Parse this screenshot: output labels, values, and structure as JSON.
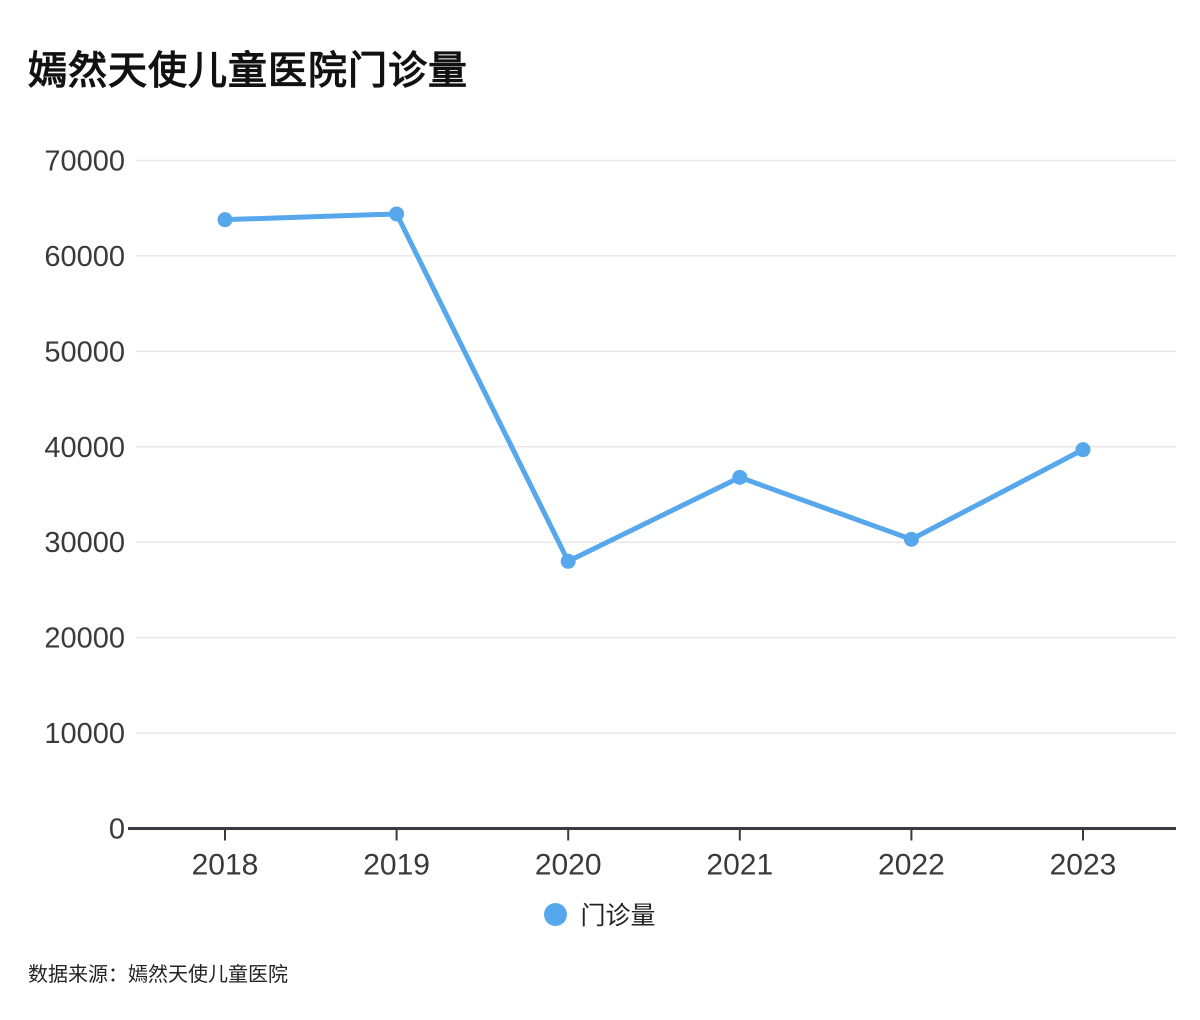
{
  "title": "嫣然天使儿童医院门诊量",
  "legend": {
    "label": "门诊量"
  },
  "source": "数据来源：嫣然天使儿童医院",
  "colors": {
    "series_blue": "#57a7ec",
    "gridline": "#e8e8e8",
    "axis": "#3a3a40",
    "tick_label": "#3a3a3a",
    "title_text": "#111111"
  },
  "chart_data": {
    "type": "line",
    "title": "嫣然天使儿童医院门诊量",
    "categories": [
      "2018",
      "2019",
      "2020",
      "2021",
      "2022",
      "2023"
    ],
    "series": [
      {
        "name": "门诊量",
        "values": [
          63800,
          64400,
          28000,
          36800,
          30300,
          39700
        ]
      }
    ],
    "xlabel": "",
    "ylabel": "",
    "ylim": [
      0,
      70000
    ],
    "ytick_step": 10000,
    "grid": true,
    "legend_position": "bottom",
    "line_color": "#57a7ec"
  }
}
